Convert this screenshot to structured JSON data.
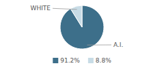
{
  "chart_data": {
    "type": "pie",
    "categories": [
      "A.I.",
      "WHITE"
    ],
    "values": [
      91.2,
      8.8
    ],
    "value_labels": [
      "91.2%",
      "8.8%"
    ],
    "colors": [
      "#3d6f8a",
      "#c8dce6"
    ],
    "legend": "bottom"
  }
}
